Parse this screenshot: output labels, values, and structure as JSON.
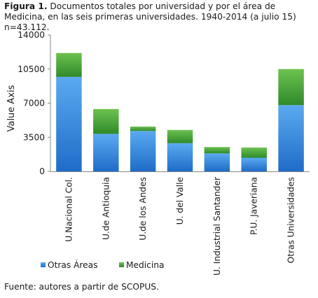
{
  "caption": {
    "label": "Figura 1.",
    "text": "Documentos totales por universidad y por el área de Medicina, en las seis primeras universidades. 1940-2014 (a julio 15) n=43.112."
  },
  "source": "Fuente: autores a partir de SCOPUS.",
  "chart_data": {
    "type": "bar",
    "stacked": true,
    "ylabel": "Value Axis",
    "xlabel": "",
    "ylim": [
      0,
      14000
    ],
    "yticks": [
      "0",
      "3500",
      "7000",
      "10500",
      "14000"
    ],
    "categories": [
      "U.Nacional Col.",
      "U.de Antioquia",
      "U.de los Andes",
      "U. del Valle",
      "U. Industrial Santander",
      "P.U. Javeriana",
      "Otras Universidades"
    ],
    "series": [
      {
        "name": "Otras Áreas",
        "color": "#3a8ee0",
        "values": [
          9700,
          3850,
          4150,
          2900,
          1850,
          1400,
          6800
        ]
      },
      {
        "name": "Medicina",
        "color": "#4aa83a",
        "values": [
          2450,
          2550,
          450,
          1350,
          650,
          1050,
          3700
        ]
      }
    ],
    "grid": false,
    "legend": "bottom"
  }
}
